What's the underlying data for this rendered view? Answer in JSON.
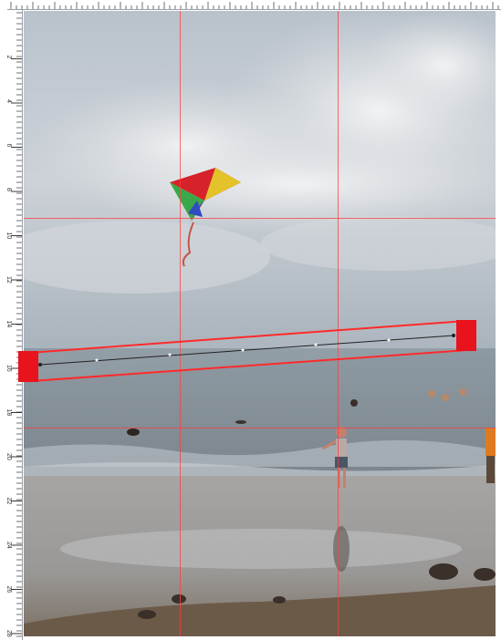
{
  "ruler": {
    "labels": [
      "2",
      "4",
      "6",
      "8",
      "10",
      "12",
      "14",
      "16",
      "18",
      "20",
      "22",
      "24",
      "26",
      "28"
    ]
  },
  "colors": {
    "guide": "#ff3c3c",
    "handle": "#e8131c",
    "sky": "#c9cfd6",
    "sea": "#8f9aa3",
    "sand": "#9a9590"
  },
  "icons": {
    "rotate_line": "straighten-line-icon"
  }
}
